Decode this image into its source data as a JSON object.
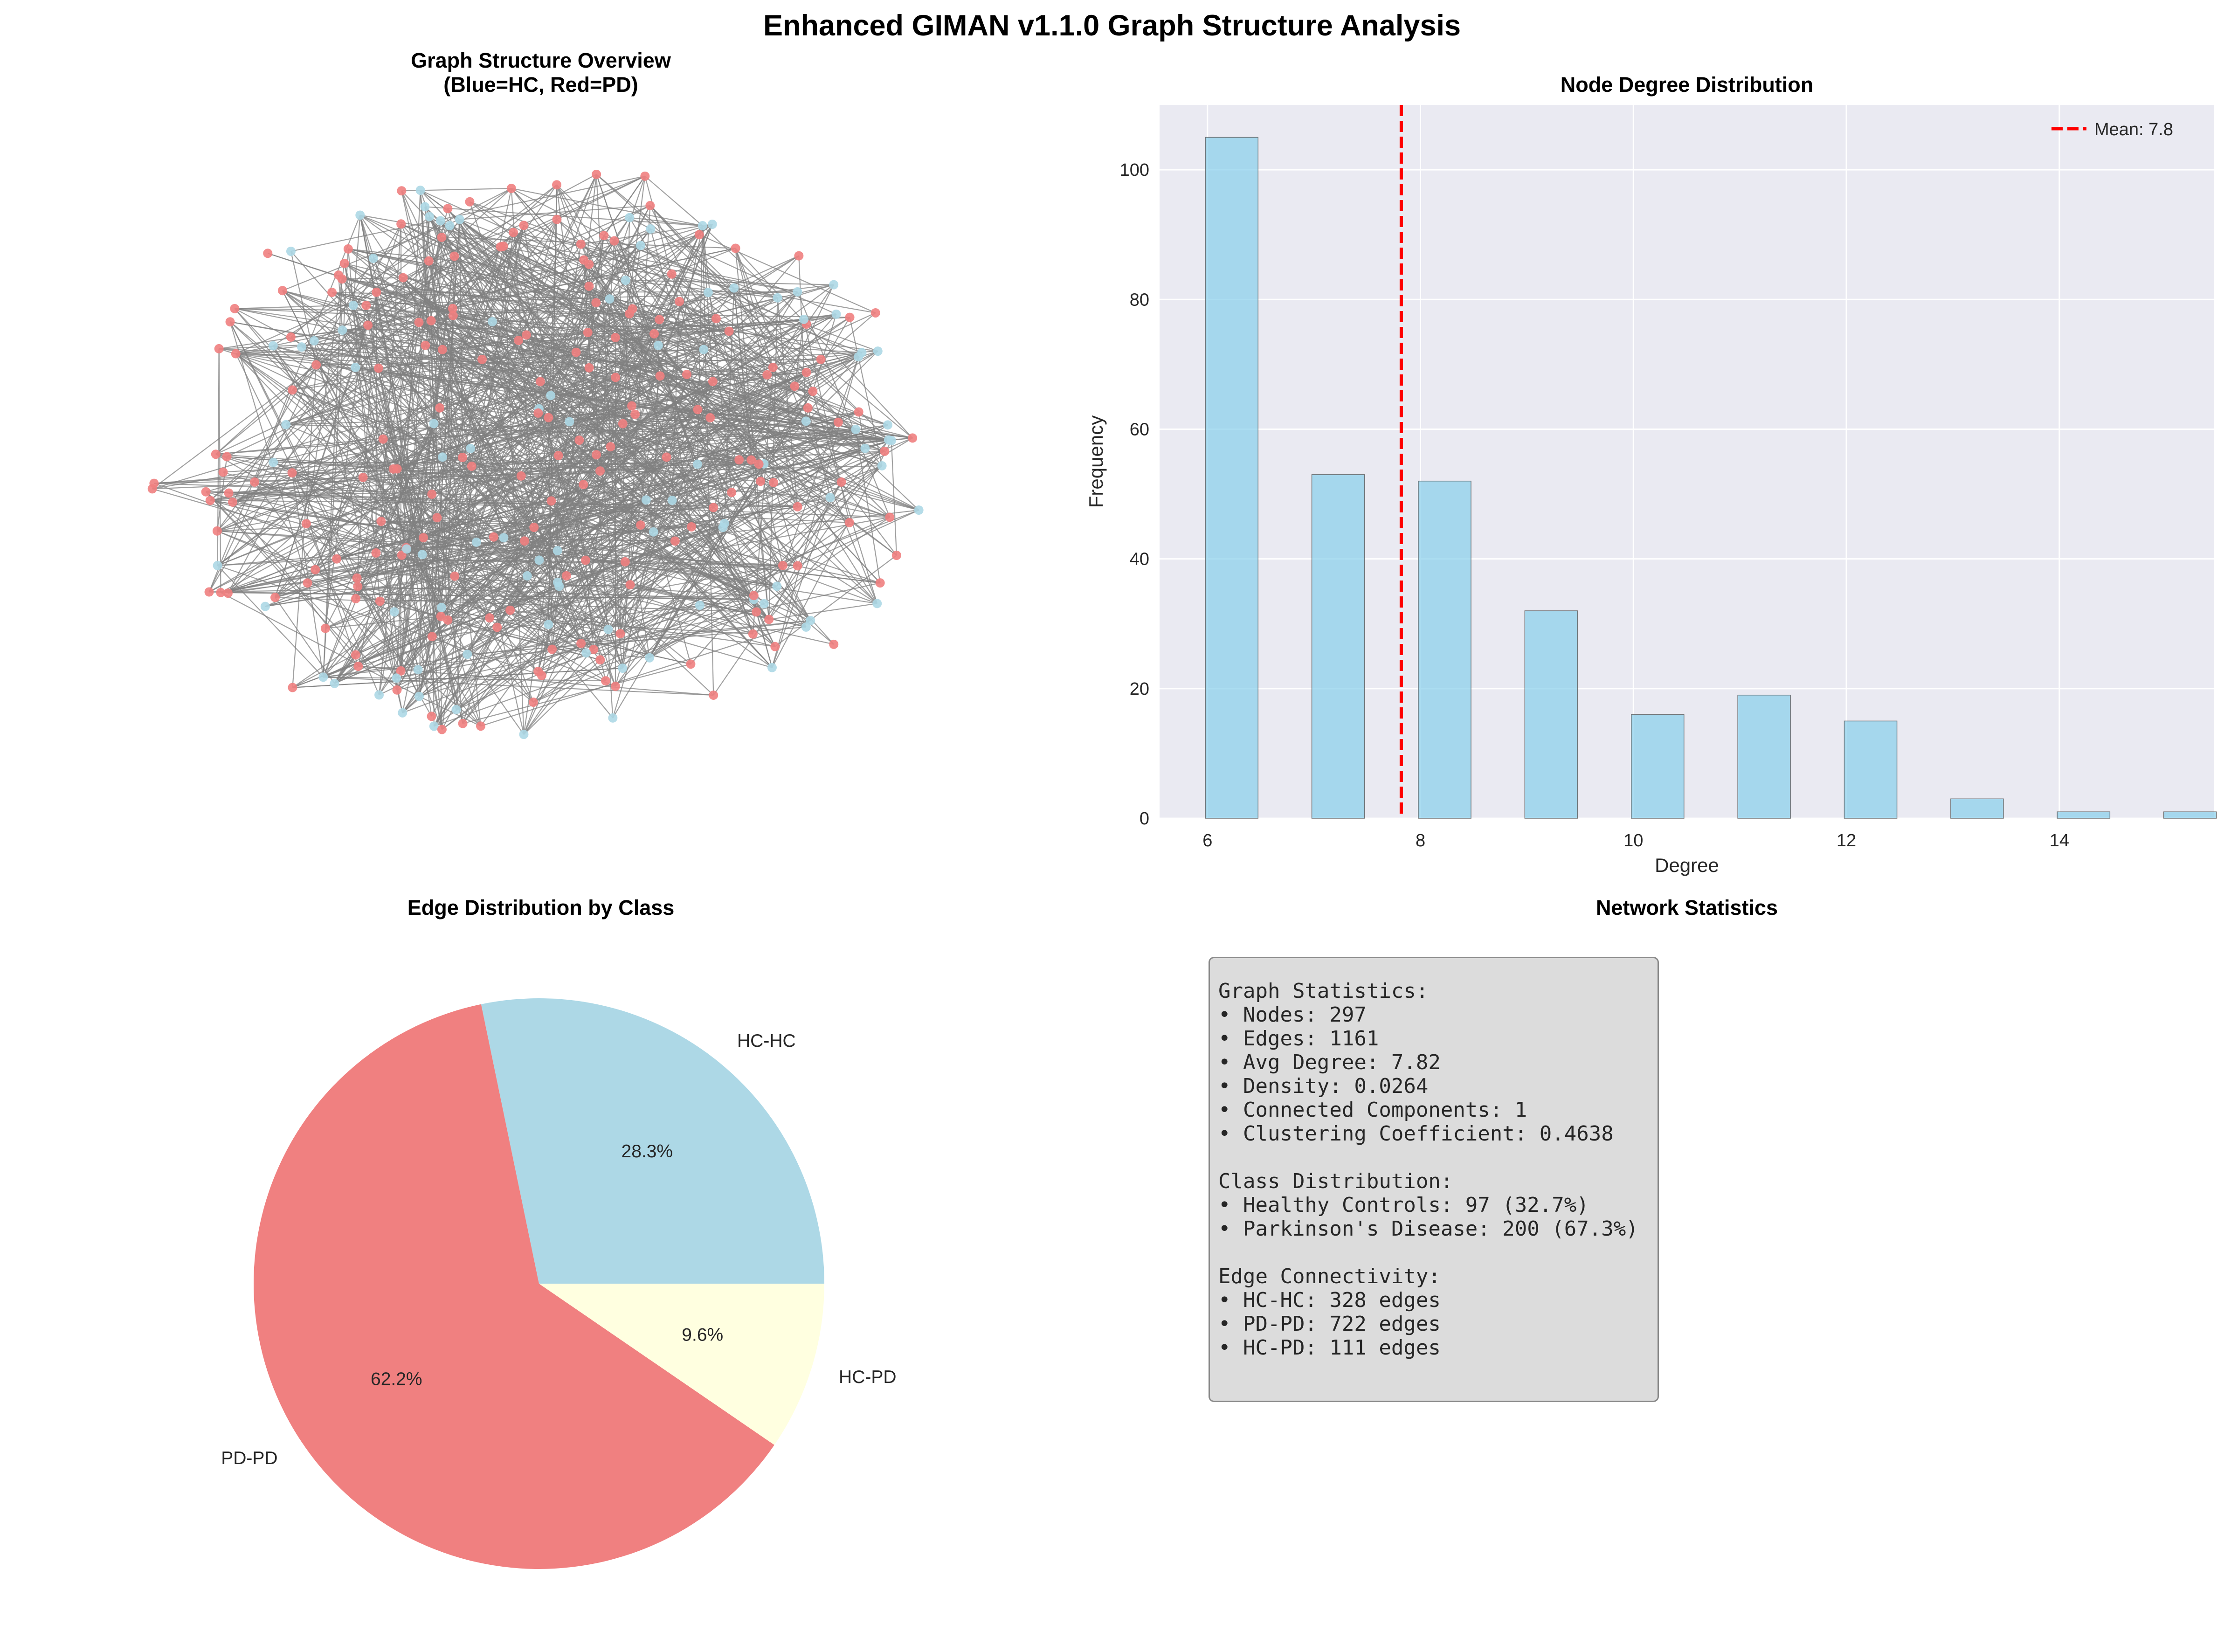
{
  "figure": {
    "title": "Enhanced GIMAN v1.1.0 Graph Structure Analysis"
  },
  "graph_panel": {
    "title_line1": "Graph Structure Overview",
    "title_line2": "(Blue=HC, Red=PD)",
    "node_colors": {
      "HC": "#add8e6",
      "PD": "#f08080"
    },
    "edge_color": "#808080"
  },
  "degree_panel": {
    "title": "Node Degree Distribution",
    "legend_label": "Mean: 7.8",
    "bar_color": "#87ceeb",
    "mean_line_color": "#ff0000"
  },
  "pie_panel": {
    "title": "Edge Distribution by Class"
  },
  "stats_panel": {
    "title": "Network Statistics",
    "lines": [
      "Graph Statistics:",
      "• Nodes: 297",
      "• Edges: 1161",
      "• Avg Degree: 7.82",
      "• Density: 0.0264",
      "• Connected Components: 1",
      "• Clustering Coefficient: 0.4638",
      "",
      "Class Distribution:",
      "• Healthy Controls: 97 (32.7%)",
      "• Parkinson's Disease: 200 (67.3%)",
      "",
      "Edge Connectivity:",
      "• HC-HC: 328 edges",
      "• PD-PD: 722 edges",
      "• HC-PD: 111 edges"
    ]
  },
  "chart_data": [
    {
      "type": "scatter",
      "name": "graph-structure-overview",
      "node_count": 297,
      "edge_count": 1161,
      "classes": [
        {
          "name": "HC",
          "count": 97
        },
        {
          "name": "PD",
          "count": 200
        }
      ],
      "axis": "off"
    },
    {
      "type": "bar",
      "name": "node-degree-distribution",
      "xlabel": "Degree",
      "ylabel": "Frequency",
      "x": [
        6,
        7,
        8,
        9,
        10,
        11,
        12,
        13,
        14,
        15
      ],
      "values": [
        105,
        53,
        52,
        32,
        16,
        19,
        15,
        3,
        1,
        1
      ],
      "mean": 7.82,
      "xlim": [
        5.55,
        15.45
      ],
      "ylim": [
        0,
        110
      ],
      "xticks": [
        6,
        8,
        10,
        12,
        14
      ],
      "yticks": [
        0,
        20,
        40,
        60,
        80,
        100
      ],
      "grid": true,
      "legend_position": "upper right"
    },
    {
      "type": "pie",
      "name": "edge-distribution-by-class",
      "labels": [
        "HC-HC",
        "PD-PD",
        "HC-PD"
      ],
      "values": [
        328,
        722,
        111
      ],
      "percent_labels": [
        "28.3%",
        "62.2%",
        "9.6%"
      ],
      "colors": [
        "#add8e6",
        "#f08080",
        "#ffffe0"
      ]
    }
  ]
}
